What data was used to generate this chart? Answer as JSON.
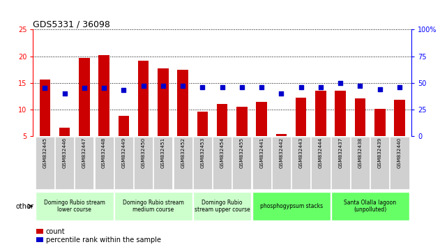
{
  "title": "GDS5331 / 36098",
  "samples": [
    "GSM832445",
    "GSM832446",
    "GSM832447",
    "GSM832448",
    "GSM832449",
    "GSM832450",
    "GSM832451",
    "GSM832452",
    "GSM832453",
    "GSM832454",
    "GSM832455",
    "GSM832441",
    "GSM832442",
    "GSM832443",
    "GSM832444",
    "GSM832437",
    "GSM832438",
    "GSM832439",
    "GSM832440"
  ],
  "counts": [
    15.6,
    6.6,
    19.7,
    20.2,
    8.8,
    19.2,
    17.7,
    17.5,
    9.6,
    11.0,
    10.5,
    11.4,
    5.4,
    12.2,
    13.5,
    13.5,
    12.1,
    10.1,
    11.8
  ],
  "percentiles": [
    45,
    40,
    45,
    45,
    43,
    47,
    47,
    47,
    46,
    46,
    46,
    46,
    40,
    46,
    46,
    50,
    47,
    44,
    46
  ],
  "groups": [
    {
      "label": "Domingo Rubio stream\nlower course",
      "start": 0,
      "end": 4,
      "color": "#ccffcc"
    },
    {
      "label": "Domingo Rubio stream\nmedium course",
      "start": 4,
      "end": 8,
      "color": "#ccffcc"
    },
    {
      "label": "Domingo Rubio\nstream upper course",
      "start": 8,
      "end": 11,
      "color": "#ccffcc"
    },
    {
      "label": "phosphogypsum stacks",
      "start": 11,
      "end": 15,
      "color": "#66ff66"
    },
    {
      "label": "Santa Olalla lagoon\n(unpolluted)",
      "start": 15,
      "end": 19,
      "color": "#66ff66"
    }
  ],
  "ylim_left": [
    5,
    25
  ],
  "ylim_right": [
    0,
    100
  ],
  "yticks_left": [
    5,
    10,
    15,
    20,
    25
  ],
  "yticks_right": [
    0,
    25,
    50,
    75,
    100
  ],
  "bar_color": "#cc0000",
  "dot_color": "#0000cc",
  "bar_width": 0.55,
  "dot_size": 22,
  "background_color": "#f0f0f0"
}
